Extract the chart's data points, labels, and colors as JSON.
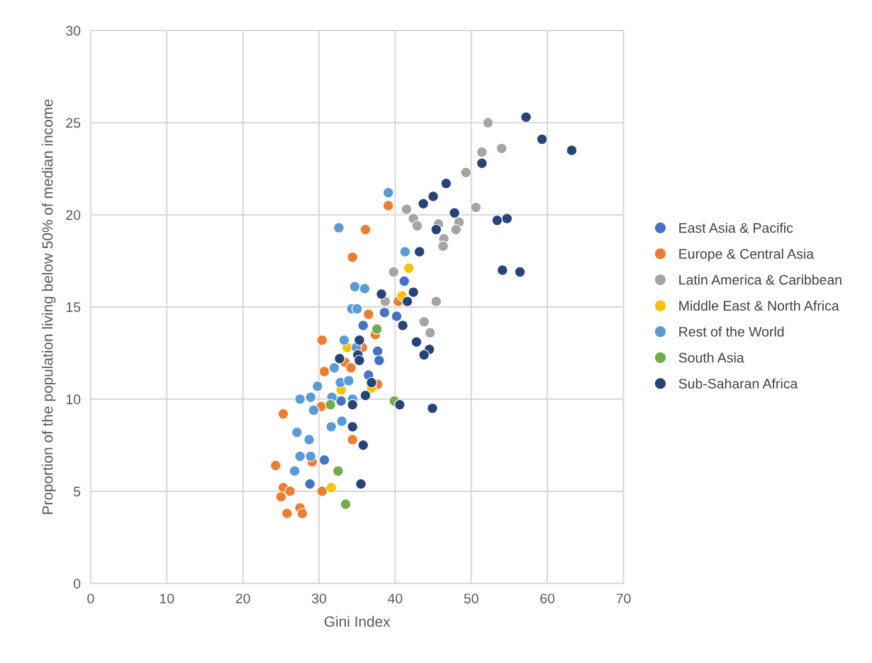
{
  "chart_data": {
    "type": "scatter",
    "xlabel": "Gini Index",
    "ylabel": "Proportion of the population living below 50% of median income",
    "xlim": [
      0,
      70
    ],
    "xticks": [
      0,
      10,
      20,
      30,
      40,
      50,
      60,
      70
    ],
    "ylim": [
      0,
      30
    ],
    "yticks": [
      0,
      5,
      10,
      15,
      20,
      25,
      30
    ],
    "grid": true,
    "legend": "right",
    "marker": "circle",
    "series": [
      {
        "name": "East Asia & Pacific",
        "color": "#4472c4",
        "x": [
          41.2,
          38.6,
          40.2,
          35.8,
          37.7,
          37.9,
          36.5,
          32.9,
          30.7,
          28.8
        ],
        "values": [
          16.4,
          14.7,
          14.5,
          14.0,
          12.6,
          12.1,
          11.3,
          9.9,
          6.7,
          5.4
        ]
      },
      {
        "name": "Europe & Central Asia",
        "color": "#ed7d31",
        "x": [
          39.1,
          36.1,
          34.4,
          36.5,
          40.4,
          30.4,
          37.4,
          35.7,
          33.4,
          34.2,
          30.7,
          37.7,
          30.3,
          25.3,
          34.4,
          29.1,
          24.3,
          25.3,
          26.2,
          25.0,
          30.4,
          25.8,
          27.5,
          27.8
        ],
        "values": [
          20.5,
          19.2,
          17.7,
          14.6,
          15.3,
          13.2,
          13.5,
          12.8,
          12.0,
          11.7,
          11.5,
          10.8,
          9.6,
          9.2,
          7.8,
          6.6,
          6.4,
          5.2,
          5.0,
          4.7,
          5.0,
          3.8,
          4.1,
          3.8
        ]
      },
      {
        "name": "Latin America & Caribbean",
        "color": "#a5a5a5",
        "x": [
          52.2,
          51.4,
          54.0,
          49.3,
          50.6,
          41.5,
          42.4,
          42.9,
          45.7,
          48.4,
          48.0,
          46.4,
          46.3,
          39.8,
          38.7,
          45.4,
          43.8,
          44.6
        ],
        "values": [
          25.0,
          23.4,
          23.6,
          22.3,
          20.4,
          20.3,
          19.8,
          19.4,
          19.5,
          19.6,
          19.2,
          18.7,
          18.3,
          16.9,
          15.3,
          15.3,
          14.2,
          13.6
        ]
      },
      {
        "name": "Middle East & North Africa",
        "color": "#ffc000",
        "x": [
          41.8,
          40.9,
          33.7,
          32.9,
          36.9,
          31.6
        ],
        "values": [
          17.1,
          15.6,
          12.8,
          10.5,
          10.6,
          5.2
        ]
      },
      {
        "name": "Rest of the World",
        "color": "#5b9bd5",
        "x": [
          39.1,
          32.6,
          41.3,
          34.7,
          36.0,
          34.3,
          35.0,
          33.3,
          34.9,
          32.0,
          29.8,
          32.8,
          33.9,
          27.5,
          28.9,
          31.7,
          34.4,
          29.3,
          33.0,
          31.6,
          27.1,
          28.7,
          27.5,
          28.9,
          26.8
        ],
        "values": [
          21.2,
          19.3,
          18.0,
          16.1,
          16.0,
          14.9,
          14.9,
          13.2,
          12.8,
          11.7,
          10.7,
          10.9,
          11.0,
          10.0,
          10.1,
          10.1,
          10.0,
          9.4,
          8.8,
          8.5,
          8.2,
          7.8,
          6.9,
          6.9,
          6.1
        ]
      },
      {
        "name": "South Asia",
        "color": "#70ad47",
        "x": [
          37.6,
          31.5,
          39.9,
          32.5,
          33.5
        ],
        "values": [
          13.8,
          9.7,
          9.9,
          6.1,
          4.3
        ]
      },
      {
        "name": "Sub-Saharan Africa",
        "color": "#264478",
        "x": [
          57.2,
          59.3,
          63.2,
          51.4,
          46.7,
          45.0,
          43.7,
          47.8,
          53.4,
          54.7,
          45.4,
          43.2,
          54.1,
          56.4,
          38.2,
          42.4,
          41.6,
          41.0,
          42.8,
          44.5,
          43.8,
          35.3,
          35.1,
          35.3,
          32.7,
          36.9,
          36.1,
          34.4,
          40.6,
          44.9,
          34.4,
          35.8,
          35.5
        ],
        "values": [
          25.3,
          24.1,
          23.5,
          22.8,
          21.7,
          21.0,
          20.6,
          20.1,
          19.7,
          19.8,
          19.2,
          18.0,
          17.0,
          16.9,
          15.7,
          15.8,
          15.3,
          14.0,
          13.1,
          12.7,
          12.4,
          13.2,
          12.4,
          12.1,
          12.2,
          10.9,
          10.2,
          9.7,
          9.7,
          9.5,
          8.5,
          7.5,
          5.4
        ]
      }
    ]
  }
}
